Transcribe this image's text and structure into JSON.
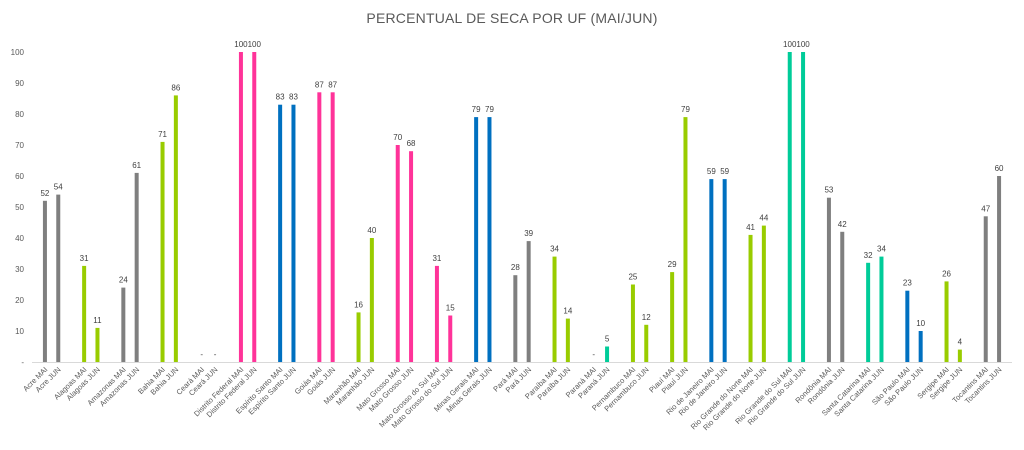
{
  "chart_data": {
    "type": "bar",
    "title": "PERCENTUAL DE SECA POR UF (MAI/JUN)",
    "xlabel": "",
    "ylabel": "",
    "ylim": [
      0,
      100
    ],
    "yticks": [
      "-",
      "10",
      "20",
      "30",
      "40",
      "50",
      "60",
      "70",
      "80",
      "90",
      "100"
    ],
    "grid": false,
    "legend": "none",
    "region_colors": {
      "gray": "#7f7f7f",
      "lime": "#99cc00",
      "pink": "#ff3399",
      "blue": "#0070c0",
      "teal": "#00cc99"
    },
    "categories": [
      "Acre MAI",
      "Acre JUN",
      "Alagoas MAI",
      "Alagoas JUN",
      "Amazonas MAI",
      "Amazonas JUN",
      "Bahia MAI",
      "Bahia JUN",
      "Ceará MAI",
      "Ceará JUN",
      "Distrito Federal MAI",
      "Distrito Federal JUN",
      "Espírito Santo MAI",
      "Espírito Santo JUN",
      "Goiás MAI",
      "Goiás JUN",
      "Maranhão MAI",
      "Maranhão JUN",
      "Mato Grosso MAI",
      "Mato Grosso JUN",
      "Mato Grosso do Sul MAI",
      "Mato Grosso do Sul JUN",
      "Minas Gerais MAI",
      "Minas Gerais JUN",
      "Pará MAI",
      "Pará JUN",
      "Paraíba MAI",
      "Paraíba JUN",
      "Paraná MAI",
      "Paraná JUN",
      "Pernambuco MAI",
      "Pernambuco JUN",
      "Piauí MAI",
      "Piauí JUN",
      "Rio de Janeiro MAI",
      "Rio de Janeiro JUN",
      "Rio Grande do Norte MAI",
      "Rio Grande do Norte JUN",
      "Rio Grande do Sul MAI",
      "Rio Grande do Sul JUN",
      "Rondônia MAI",
      "Rondônia JUN",
      "Santa Catarina MAI",
      "Santa Catarina JUN",
      "São Paulo MAI",
      "São Paulo JUN",
      "Sergipe MAI",
      "Sergipe JUN",
      "Tocantins MAI",
      "Tocantins JUN"
    ],
    "values": [
      52,
      54,
      31,
      11,
      24,
      61,
      71,
      86,
      0,
      0,
      100,
      100,
      83,
      83,
      87,
      87,
      16,
      40,
      70,
      68,
      31,
      15,
      79,
      79,
      28,
      39,
      34,
      14,
      0,
      5,
      25,
      12,
      29,
      79,
      59,
      59,
      41,
      44,
      100,
      100,
      53,
      42,
      32,
      34,
      23,
      10,
      26,
      4,
      47,
      60
    ],
    "data_labels": [
      "52",
      "54",
      "31",
      "11",
      "24",
      "61",
      "71",
      "86",
      "-",
      "-",
      "100",
      "100",
      "83",
      "83",
      "87",
      "87",
      "16",
      "40",
      "70",
      "68",
      "31",
      "15",
      "79",
      "79",
      "28",
      "39",
      "34",
      "14",
      "-",
      "5",
      "25",
      "12",
      "29",
      "79",
      "59",
      "59",
      "41",
      "44",
      "100",
      "100",
      "53",
      "42",
      "32",
      "34",
      "23",
      "10",
      "26",
      "4",
      "47",
      "60"
    ],
    "colors": [
      "gray",
      "gray",
      "lime",
      "lime",
      "gray",
      "gray",
      "lime",
      "lime",
      "lime",
      "lime",
      "pink",
      "pink",
      "blue",
      "blue",
      "pink",
      "pink",
      "lime",
      "lime",
      "pink",
      "pink",
      "pink",
      "pink",
      "blue",
      "blue",
      "gray",
      "gray",
      "lime",
      "lime",
      "teal",
      "teal",
      "lime",
      "lime",
      "lime",
      "lime",
      "blue",
      "blue",
      "lime",
      "lime",
      "teal",
      "teal",
      "gray",
      "gray",
      "teal",
      "teal",
      "blue",
      "blue",
      "lime",
      "lime",
      "gray",
      "gray"
    ]
  }
}
